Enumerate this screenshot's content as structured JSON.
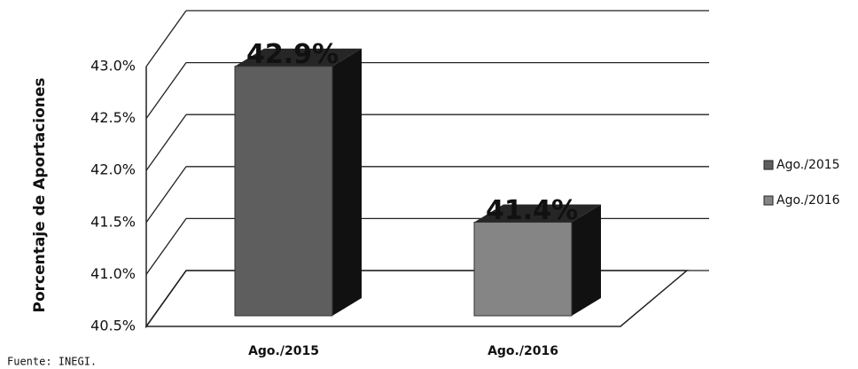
{
  "chart_data": {
    "type": "bar3d",
    "y_label": "Porcentaje de Aportaciones",
    "categories": [
      "Ago./2015",
      "Ago./2016"
    ],
    "values": [
      42.9,
      41.4
    ],
    "value_labels": [
      "42.9%",
      "41.4%"
    ],
    "colors": [
      "#5e5e5e",
      "#858585"
    ],
    "ylim": [
      40.5,
      43.0
    ],
    "yticks": [
      {
        "value": 40.5,
        "label": "40.5%"
      },
      {
        "value": 41.0,
        "label": "41.0%"
      },
      {
        "value": 41.5,
        "label": "41.5%"
      },
      {
        "value": 42.0,
        "label": "42.0%"
      },
      {
        "value": 42.5,
        "label": "42.5%"
      },
      {
        "value": 43.0,
        "label": "43.0%"
      }
    ],
    "grid": true,
    "legend": "right",
    "source": "Fuente: INEGI."
  }
}
